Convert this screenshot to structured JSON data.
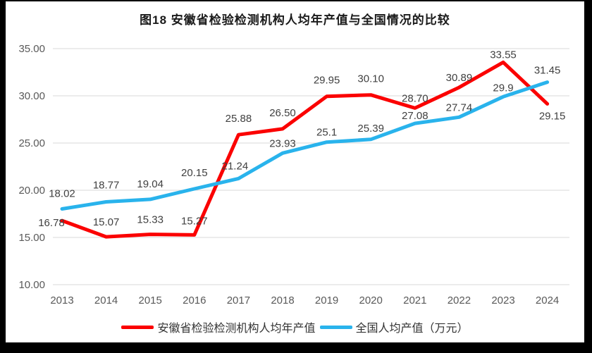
{
  "title": "图18 安徽省检验检测机构人均年产值与全国情况的比较",
  "chart_data": {
    "type": "line",
    "title": "图18 安徽省检验检测机构人均年产值与全国情况的比较",
    "categories": [
      "2013",
      "2014",
      "2015",
      "2016",
      "2017",
      "2018",
      "2019",
      "2020",
      "2021",
      "2022",
      "2023",
      "2024"
    ],
    "series": [
      {
        "name": "安徽省检验检测机构人均年产值",
        "color": "#fb0000",
        "values": [
          16.78,
          15.07,
          15.33,
          15.27,
          25.88,
          26.5,
          29.95,
          30.1,
          28.7,
          30.89,
          33.55,
          29.15
        ],
        "labels": [
          "16.78",
          "15.07",
          "15.33",
          "15.27",
          "25.88",
          "26.50",
          "29.95",
          "30.10",
          "28.70",
          "30.89",
          "33.55",
          "29.15"
        ]
      },
      {
        "name": "全国人均产值（万元）",
        "color": "#29b3ec",
        "values": [
          18.02,
          18.77,
          19.04,
          20.15,
          21.24,
          23.93,
          25.1,
          25.39,
          27.08,
          27.74,
          29.9,
          31.45
        ],
        "labels": [
          "18.02",
          "18.77",
          "19.04",
          "20.15",
          "21.24",
          "23.93",
          "25.1",
          "25.39",
          "27.08",
          "27.74",
          "29.9",
          "31.45"
        ]
      }
    ],
    "y_axis": {
      "min": 10,
      "max": 35,
      "step": 5,
      "tick_values": [
        35,
        30,
        25,
        20,
        15,
        10
      ],
      "tick_labels": [
        "35.00",
        "30.00",
        "25.00",
        "20.00",
        "15.00",
        "10.00"
      ]
    },
    "x_axis": {
      "tick_labels": [
        "2013",
        "2014",
        "2015",
        "2016",
        "2017",
        "2018",
        "2019",
        "2020",
        "2021",
        "2022",
        "2023",
        "2024"
      ]
    },
    "grid": true,
    "legend_position": "bottom",
    "data_labels_shown": true
  },
  "colors": {
    "background_frame": "#000000",
    "panel": "#ffffff",
    "gridline": "#d9d9d9",
    "axis_text": "#595959",
    "data_label_text": "#404040",
    "series_anhui": "#fb0000",
    "series_national": "#29b3ec"
  }
}
